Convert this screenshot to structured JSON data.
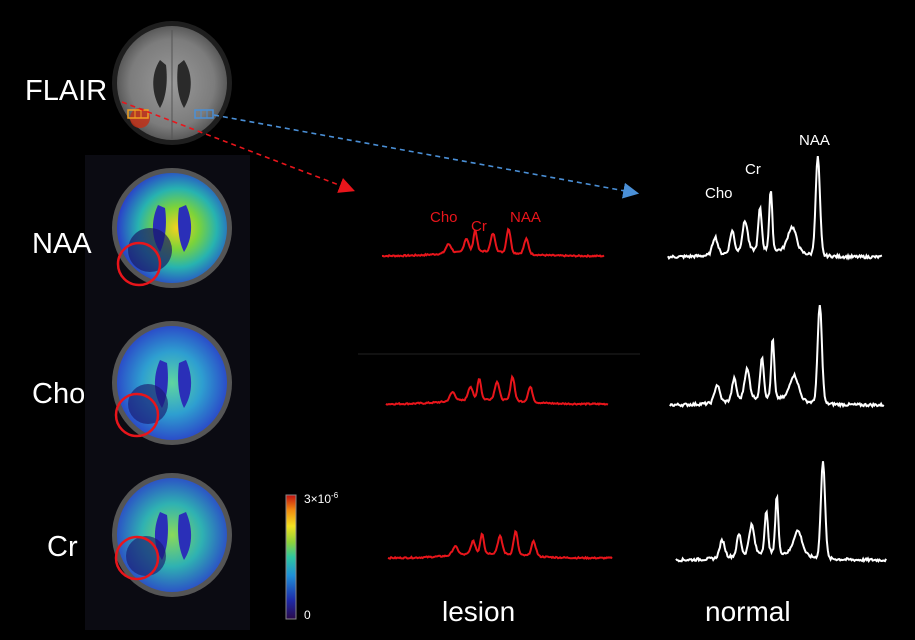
{
  "rows": {
    "flair": "FLAIR",
    "naa": "NAA",
    "cho": "Cho",
    "cr": "Cr"
  },
  "columns": {
    "lesion": "lesion",
    "normal": "normal"
  },
  "peaks": {
    "lesion": {
      "cho": "Cho",
      "cr": "Cr",
      "naa": "NAA"
    },
    "normal": {
      "cho": "Cho",
      "cr": "Cr",
      "naa": "NAA"
    }
  },
  "colorbar": {
    "max": "3×10",
    "max_exp": "-6",
    "min": "0"
  },
  "colors": {
    "lesion": "#e8151b",
    "normal": "#ffffff",
    "arrow_lesion": "#e8151b",
    "arrow_normal": "#4a8fd6",
    "background": "#000000"
  }
}
